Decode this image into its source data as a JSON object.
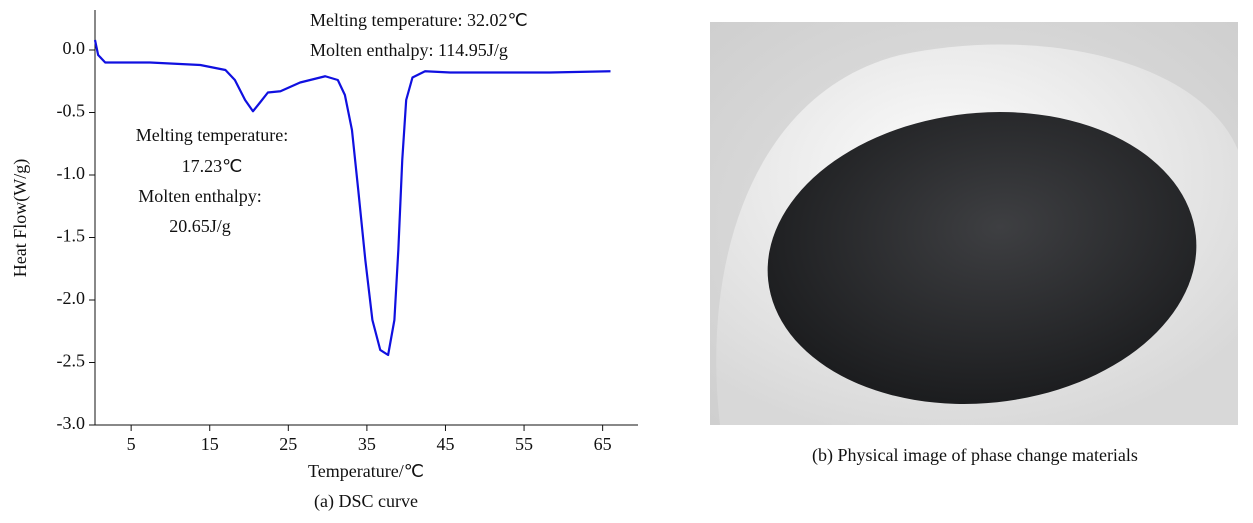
{
  "chart_data": {
    "type": "line",
    "x_label": "Temperature/℃",
    "y_label": "Heat Flow(W/g)",
    "caption": "(a) DSC curve",
    "annotations": [
      "Melting temperature: 32.02℃",
      "Molten enthalpy: 114.95J/g",
      "Melting temperature:",
      "17.23℃",
      "Molten enthalpy:",
      "20.65J/g"
    ],
    "xlim": [
      0.4,
      69.5
    ],
    "ylim": [
      -3.0,
      0.32
    ],
    "xticks": [
      5,
      15,
      25,
      35,
      45,
      55,
      65
    ],
    "yticks": [
      {
        "value": 0,
        "label": "0.0"
      },
      {
        "value": -0.5,
        "label": "-0.5"
      },
      {
        "value": -1,
        "label": "-1.0"
      },
      {
        "value": -1.5,
        "label": "-1.5"
      },
      {
        "value": -2,
        "label": "-2.0"
      },
      {
        "value": -2.5,
        "label": "-2.5"
      },
      {
        "value": -3,
        "label": "-3.0"
      }
    ],
    "grid": false,
    "series": [
      {
        "color": "#1010e0",
        "x": [
          0.4,
          0.8,
          1.7,
          7.4,
          13.8,
          17,
          18.2,
          19.5,
          20.5,
          21.4,
          22.4,
          24,
          26.5,
          29.7,
          31.3,
          32.2,
          33.1,
          33.9,
          34.8,
          35.7,
          36.7,
          37.7,
          38.5,
          39,
          39.5,
          40,
          40.8,
          42.4,
          45.6,
          52,
          58.3,
          66
        ],
        "values": [
          0.08,
          -0.04,
          -0.1,
          -0.1,
          -0.12,
          -0.16,
          -0.24,
          -0.4,
          -0.49,
          -0.42,
          -0.34,
          -0.33,
          -0.26,
          -0.21,
          -0.24,
          -0.36,
          -0.64,
          -1.12,
          -1.68,
          -2.16,
          -2.4,
          -2.44,
          -2.16,
          -1.6,
          -0.88,
          -0.4,
          -0.22,
          -0.17,
          -0.18,
          -0.18,
          -0.18,
          -0.17
        ]
      }
    ]
  },
  "photo": {
    "caption": "(b) Physical image of phase change materials"
  }
}
